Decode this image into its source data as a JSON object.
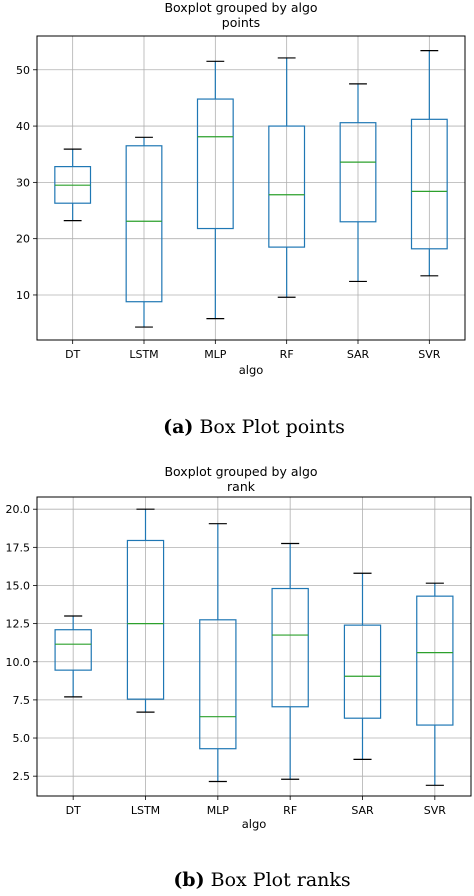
{
  "chart_data": [
    {
      "type": "boxplot",
      "title": "Boxplot grouped by algo",
      "subtitle": "points",
      "xlabel": "algo",
      "ylabel": "",
      "ylim": [
        2,
        56
      ],
      "yticks": [
        "10",
        "20",
        "30",
        "40",
        "50"
      ],
      "grid": true,
      "box_color": "#1f77b4",
      "median_color": "#2ca02c",
      "categories": [
        "DT",
        "LSTM",
        "MLP",
        "RF",
        "SAR",
        "SVR"
      ],
      "boxes": [
        {
          "whislo": 23.2,
          "q1": 26.3,
          "med": 29.5,
          "q3": 32.8,
          "whishi": 35.9
        },
        {
          "whislo": 4.3,
          "q1": 8.8,
          "med": 23.1,
          "q3": 36.5,
          "whishi": 38.0
        },
        {
          "whislo": 5.8,
          "q1": 21.8,
          "med": 38.1,
          "q3": 44.8,
          "whishi": 51.5
        },
        {
          "whislo": 9.6,
          "q1": 18.5,
          "med": 27.8,
          "q3": 40.0,
          "whishi": 52.1
        },
        {
          "whislo": 12.4,
          "q1": 23.0,
          "med": 33.6,
          "q3": 40.6,
          "whishi": 47.5
        },
        {
          "whislo": 13.4,
          "q1": 18.2,
          "med": 28.4,
          "q3": 41.2,
          "whishi": 53.4
        }
      ],
      "caption_label": "(a)",
      "caption_text": "Box Plot points"
    },
    {
      "type": "boxplot",
      "title": "Boxplot grouped by algo",
      "subtitle": "rank",
      "xlabel": "algo",
      "ylabel": "",
      "ylim": [
        1.2,
        20.8
      ],
      "yticks": [
        "2.5",
        "5.0",
        "7.5",
        "10.0",
        "12.5",
        "15.0",
        "17.5",
        "20.0"
      ],
      "grid": true,
      "box_color": "#1f77b4",
      "median_color": "#2ca02c",
      "categories": [
        "DT",
        "LSTM",
        "MLP",
        "RF",
        "SAR",
        "SVR"
      ],
      "boxes": [
        {
          "whislo": 7.7,
          "q1": 9.45,
          "med": 11.15,
          "q3": 12.1,
          "whishi": 13.0
        },
        {
          "whislo": 6.7,
          "q1": 7.55,
          "med": 12.5,
          "q3": 17.95,
          "whishi": 20.0
        },
        {
          "whislo": 2.15,
          "q1": 4.3,
          "med": 6.4,
          "q3": 12.75,
          "whishi": 19.05
        },
        {
          "whislo": 2.3,
          "q1": 7.05,
          "med": 11.75,
          "q3": 14.8,
          "whishi": 17.75
        },
        {
          "whislo": 3.6,
          "q1": 6.3,
          "med": 9.05,
          "q3": 12.4,
          "whishi": 15.8
        },
        {
          "whislo": 1.9,
          "q1": 5.85,
          "med": 10.6,
          "q3": 14.3,
          "whishi": 15.15
        }
      ],
      "caption_label": "(b)",
      "caption_text": "Box Plot ranks"
    }
  ]
}
